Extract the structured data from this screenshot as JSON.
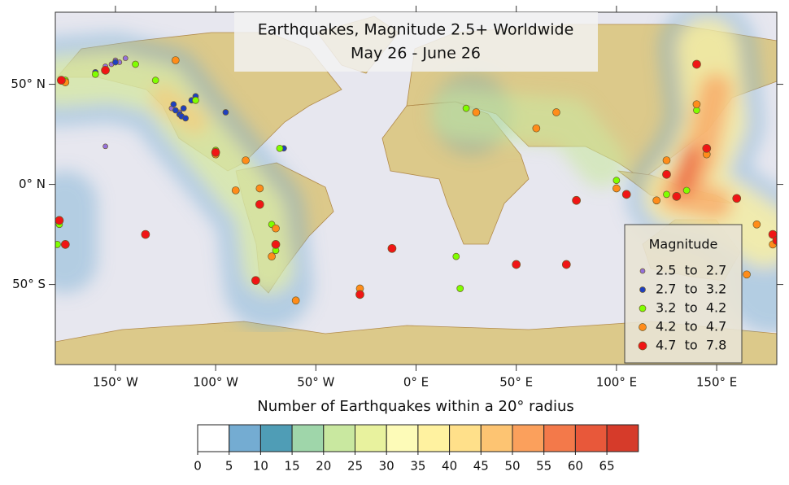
{
  "chart_data": {
    "type": "scatter",
    "title": "Earthquakes, Magnitude 2.5+ Worldwide",
    "subtitle": "May 26 - June 26",
    "xlim": [
      -180,
      180
    ],
    "ylim": [
      -90,
      86
    ],
    "xticks": [
      {
        "value": -150,
        "label": "150° W"
      },
      {
        "value": -100,
        "label": "100° W"
      },
      {
        "value": -50,
        "label": "50° W"
      },
      {
        "value": 0,
        "label": "0° E"
      },
      {
        "value": 50,
        "label": "50° E"
      },
      {
        "value": 100,
        "label": "100° E"
      },
      {
        "value": 150,
        "label": "150° E"
      }
    ],
    "yticks": [
      {
        "value": 50,
        "label": "50° N"
      },
      {
        "value": 0,
        "label": "0° N"
      },
      {
        "value": -50,
        "label": "50° S"
      }
    ],
    "legend_title": "Magnitude",
    "series": [
      {
        "name": "2.5  to  2.7",
        "color": "#9370db",
        "size": 3,
        "x": [
          -150,
          -148,
          -152,
          -155,
          -145,
          -118,
          -155,
          -122
        ],
        "y": [
          62,
          61,
          60,
          59,
          63,
          36,
          19,
          38
        ]
      },
      {
        "name": "2.7  to  3.2",
        "color": "#1f3fbf",
        "size": 3.5,
        "x": [
          -120,
          -118,
          -117,
          -116,
          -112,
          -110,
          -121,
          -115,
          -66,
          -150,
          -160,
          -95
        ],
        "y": [
          37,
          35,
          34,
          38,
          42,
          44,
          40,
          33,
          18,
          61,
          56,
          36
        ]
      },
      {
        "name": "3.2  to  4.2",
        "color": "#7fff00",
        "size": 4,
        "x": [
          -175,
          -160,
          -140,
          -130,
          -110,
          -100,
          -68,
          -72,
          -70,
          -178,
          -179,
          140,
          125,
          25,
          70,
          20,
          135,
          100,
          22
        ],
        "y": [
          52,
          55,
          60,
          52,
          42,
          17,
          18,
          -20,
          -33,
          -20,
          -30,
          37,
          -5,
          38,
          36,
          -36,
          -3,
          2,
          -52
        ]
      },
      {
        "name": "4.2  to  4.7",
        "color": "#ff8c1a",
        "size": 4.5,
        "x": [
          -175,
          -120,
          -100,
          -85,
          -78,
          -70,
          -72,
          -90,
          140,
          145,
          125,
          120,
          100,
          70,
          60,
          30,
          -28,
          -60,
          170,
          178,
          165
        ],
        "y": [
          51,
          62,
          15,
          12,
          -2,
          -22,
          -36,
          -3,
          40,
          15,
          12,
          -8,
          -2,
          36,
          28,
          36,
          -52,
          -58,
          -20,
          -30,
          -45
        ]
      },
      {
        "name": "4.7  to  7.8",
        "color": "#f01515",
        "size": 5,
        "x": [
          -178,
          -175,
          -177,
          -155,
          -100,
          -78,
          -70,
          -28,
          -12,
          -135,
          -80,
          145,
          125,
          130,
          160,
          178,
          140,
          75,
          50,
          80,
          105,
          180
        ],
        "y": [
          -18,
          -30,
          52,
          57,
          16,
          -10,
          -30,
          -55,
          -32,
          -25,
          -48,
          18,
          5,
          -6,
          -7,
          -25,
          60,
          -40,
          -40,
          -8,
          -5,
          -28
        ]
      }
    ],
    "colorbar": {
      "title": "Number of Earthquakes within a 20° radius",
      "ticks": [
        0,
        5,
        10,
        15,
        20,
        25,
        30,
        35,
        40,
        45,
        50,
        55,
        60,
        65
      ],
      "colors": [
        "#ffffff",
        "#74acd2",
        "#4f9db6",
        "#9fd6aa",
        "#c9e8a0",
        "#e8f29e",
        "#fdfbb8",
        "#fff2a0",
        "#ffe08a",
        "#fdc472",
        "#fba05c",
        "#f3794a",
        "#e8583a",
        "#d63b2a"
      ]
    }
  }
}
